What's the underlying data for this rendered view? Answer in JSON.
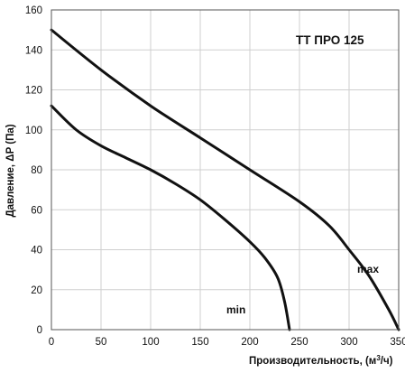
{
  "chart_data": {
    "type": "line",
    "title": "TT ПРО 125",
    "xlabel": "Производительность, (м",
    "xlabel_superscript": "3",
    "xlabel_suffix": "/ч)",
    "ylabel": "Давление, ΔP (Па)",
    "xlim": [
      0,
      350
    ],
    "ylim": [
      0,
      160
    ],
    "xticks": [
      "0",
      "50",
      "100",
      "150",
      "200",
      "250",
      "300",
      "350"
    ],
    "yticks": [
      "0",
      "20",
      "40",
      "60",
      "80",
      "100",
      "120",
      "140",
      "160"
    ],
    "grid": true,
    "colors": {
      "curve": "#111111",
      "grid": "#cfcfcf",
      "plot_background": "#ffffff",
      "frame": "#555555"
    },
    "series": [
      {
        "name": "max",
        "x": [
          0,
          50,
          100,
          150,
          200,
          250,
          280,
          300,
          320,
          340,
          350
        ],
        "y": [
          150,
          130,
          112,
          96,
          80,
          64,
          52,
          40,
          27,
          10,
          0
        ]
      },
      {
        "name": "min",
        "x": [
          0,
          25,
          50,
          75,
          100,
          125,
          150,
          175,
          200,
          215,
          228,
          235,
          240
        ],
        "y": [
          112,
          100,
          92,
          86,
          80,
          73,
          65,
          55,
          44,
          36,
          26,
          14,
          0
        ]
      }
    ]
  }
}
